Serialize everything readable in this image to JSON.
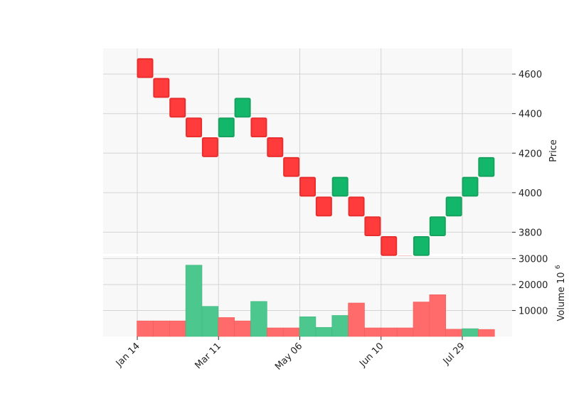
{
  "chart_data": {
    "type": "renko",
    "x_tick_labels": [
      "Jan 14",
      "Mar 11",
      "May 06",
      "Jun 10",
      "Jul 29"
    ],
    "x_tick_brick_index": [
      0,
      5,
      10,
      15,
      20
    ],
    "price_panel": {
      "ylabel": "Price",
      "yticks": [
        3800,
        4000,
        4200,
        4400,
        4600
      ],
      "ylim": [
        3690,
        4730
      ],
      "brick_size": 100,
      "bricks": [
        {
          "low": 4580,
          "high": 4680,
          "direction": "down"
        },
        {
          "low": 4480,
          "high": 4580,
          "direction": "down"
        },
        {
          "low": 4380,
          "high": 4480,
          "direction": "down"
        },
        {
          "low": 4280,
          "high": 4380,
          "direction": "down"
        },
        {
          "low": 4180,
          "high": 4280,
          "direction": "down"
        },
        {
          "low": 4280,
          "high": 4380,
          "direction": "up"
        },
        {
          "low": 4380,
          "high": 4480,
          "direction": "up"
        },
        {
          "low": 4280,
          "high": 4380,
          "direction": "down"
        },
        {
          "low": 4180,
          "high": 4280,
          "direction": "down"
        },
        {
          "low": 4080,
          "high": 4180,
          "direction": "down"
        },
        {
          "low": 3980,
          "high": 4080,
          "direction": "down"
        },
        {
          "low": 3880,
          "high": 3980,
          "direction": "down"
        },
        {
          "low": 3980,
          "high": 4080,
          "direction": "up"
        },
        {
          "low": 3880,
          "high": 3980,
          "direction": "down"
        },
        {
          "low": 3780,
          "high": 3880,
          "direction": "down"
        },
        {
          "low": 3680,
          "high": 3780,
          "direction": "down"
        },
        {
          "low": 3580,
          "high": 3680,
          "direction": "down"
        },
        {
          "low": 3680,
          "high": 3780,
          "direction": "up"
        },
        {
          "low": 3780,
          "high": 3880,
          "direction": "up"
        },
        {
          "low": 3880,
          "high": 3980,
          "direction": "up"
        },
        {
          "low": 3980,
          "high": 4080,
          "direction": "up"
        },
        {
          "low": 4080,
          "high": 4180,
          "direction": "up"
        }
      ]
    },
    "volume_panel": {
      "ylabel": "Volume",
      "scale_label": "10",
      "scale_exponent": "6",
      "yticks": [
        10000,
        20000,
        30000
      ],
      "ytick_labels": [
        "10000",
        "20000",
        "30000"
      ],
      "ylim": [
        0,
        31000
      ],
      "values": [
        6000,
        6000,
        6000,
        27500,
        11600,
        7300,
        6000,
        13500,
        3300,
        3300,
        7600,
        3500,
        8100,
        12900,
        3300,
        3300,
        3300,
        13300,
        16100,
        2800,
        3000,
        2700
      ],
      "directions": [
        "down",
        "down",
        "down",
        "up",
        "up",
        "down",
        "down",
        "up",
        "down",
        "down",
        "up",
        "up",
        "up",
        "down",
        "down",
        "down",
        "down",
        "down",
        "down",
        "down",
        "up",
        "down"
      ]
    },
    "colors": {
      "up": "#26a69a",
      "up_brick": "#13b76a",
      "up_brick_edge": "#17a35f",
      "down_brick": "#ff3b3b",
      "down_brick_edge": "#e82e2e",
      "up_volume": "#4cc88e",
      "down_volume": "#ff6b6b",
      "panel_bg": "#f8f8f8",
      "grid": "#d4d4d4"
    },
    "grid": true,
    "legend": "none"
  }
}
